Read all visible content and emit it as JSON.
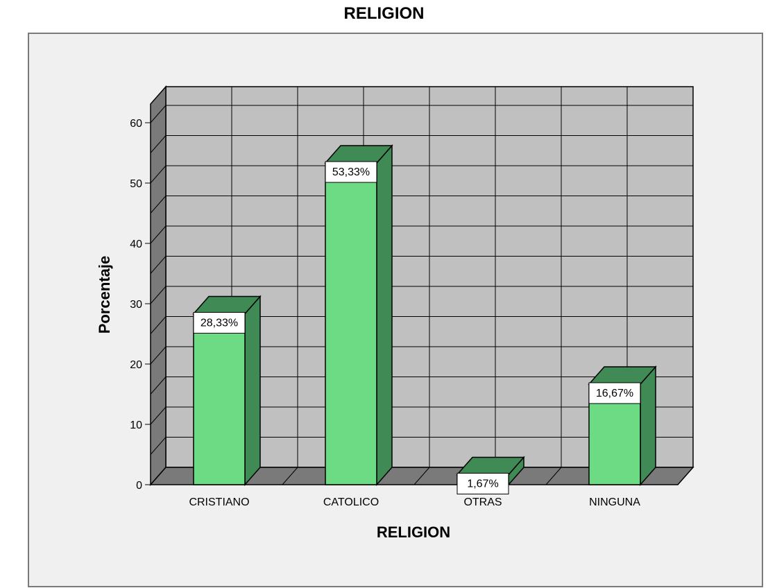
{
  "chart_data": {
    "type": "bar",
    "title": "RELIGION",
    "xlabel": "RELIGION",
    "ylabel": "Porcentaje",
    "categories": [
      "CRISTIANO",
      "CATOLICO",
      "OTRAS",
      "NINGUNA"
    ],
    "values": [
      28.33,
      53.33,
      1.67,
      16.67
    ],
    "data_labels": [
      "28,33%",
      "53,33%",
      "1,67%",
      "16,67%"
    ],
    "ylim": [
      0,
      60
    ],
    "yticks": [
      "0",
      "10",
      "20",
      "30",
      "40",
      "50",
      "60"
    ],
    "grid": true,
    "style": "3d",
    "colors": {
      "bar_front": "#6cdb84",
      "bar_side": "#3f8a55",
      "bar_top": "#3f8a55",
      "back_wall": "#c0c0c0",
      "side_wall": "#7a7a7a",
      "floor": "#7a7a7a",
      "frame_bg": "#f0f0f0"
    }
  }
}
